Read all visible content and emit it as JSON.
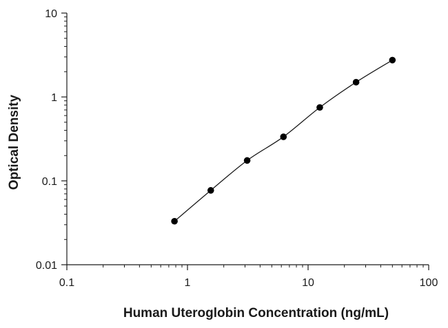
{
  "chart_data": {
    "type": "scatter",
    "title": "",
    "xlabel": "Human Uteroglobin Concentration (ng/mL)",
    "ylabel": "Optical Density",
    "x_scale": "log",
    "y_scale": "log",
    "xlim": [
      0.1,
      100
    ],
    "ylim": [
      0.01,
      10
    ],
    "x_ticks": [
      0.1,
      1,
      10,
      100
    ],
    "x_tick_labels": [
      "0.1",
      "1",
      "10",
      "100"
    ],
    "y_ticks": [
      0.01,
      0.1,
      1,
      10
    ],
    "y_tick_labels": [
      "0.01",
      "0.1",
      "1",
      "10"
    ],
    "grid": false,
    "legend": "none",
    "series": [
      {
        "x": [
          0.78,
          1.56,
          3.125,
          6.25,
          12.5,
          25,
          50
        ],
        "y": [
          0.033,
          0.077,
          0.175,
          0.335,
          0.75,
          1.5,
          2.75
        ],
        "marker": "circle",
        "fit_line": true
      }
    ],
    "colors": {
      "axis": "#1a1a1a",
      "marker": "#000000",
      "line": "#1a1a1a"
    }
  }
}
